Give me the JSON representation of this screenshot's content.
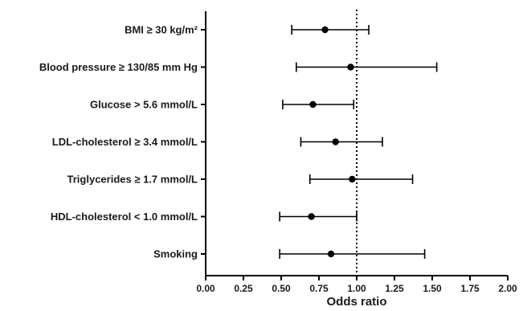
{
  "chart_data": {
    "type": "scatter",
    "subtype": "forest-plot",
    "xlabel": "Odds ratio",
    "ylabel": "",
    "title": "",
    "xlim": [
      0.0,
      2.0
    ],
    "xticks": [
      "0.00",
      "0.25",
      "0.50",
      "0.75",
      "1.00",
      "1.25",
      "1.50",
      "1.75",
      "2.00"
    ],
    "reference_line": 1.0,
    "grid": false,
    "legend": "none",
    "colors": {
      "marker": "#000000",
      "axis": "#000000",
      "label_highlight": "#e6e6e6"
    },
    "series": [
      {
        "label": "BMI ≥ 30 kg/m²",
        "or": 0.79,
        "lo": 0.57,
        "hi": 1.08
      },
      {
        "label": "Blood pressure ≥ 130/85 mm Hg",
        "or": 0.96,
        "lo": 0.6,
        "hi": 1.53
      },
      {
        "label": "Glucose > 5.6 mmol/L",
        "or": 0.71,
        "lo": 0.51,
        "hi": 0.98
      },
      {
        "label": "LDL-cholesterol ≥ 3.4 mmol/L",
        "or": 0.86,
        "lo": 0.63,
        "hi": 1.17
      },
      {
        "label": "Triglycerides ≥ 1.7 mmol/L",
        "or": 0.97,
        "lo": 0.69,
        "hi": 1.37
      },
      {
        "label": "HDL-cholesterol < 1.0 mmol/L",
        "or": 0.7,
        "lo": 0.49,
        "hi": 1.0
      },
      {
        "label": "Smoking",
        "or": 0.83,
        "lo": 0.49,
        "hi": 1.45
      }
    ]
  }
}
